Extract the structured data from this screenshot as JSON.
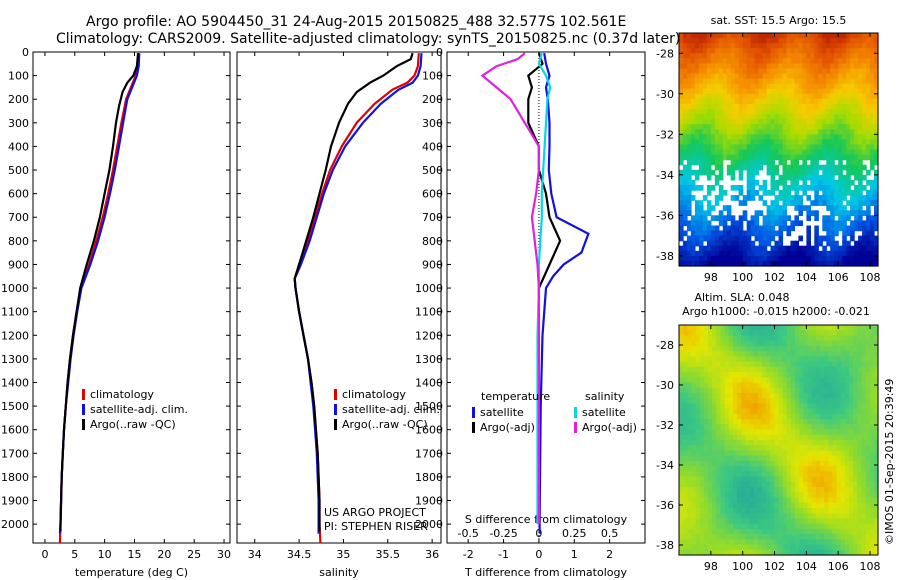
{
  "title": {
    "line1": "Argo profile: AO 5904450_31 24-Aug-2015 20150825_488 32.577S 102.561E",
    "line2": "Climatology: CARS2009. Satellite-adjusted climatology: synTS_20150825.nc (0.37d later)"
  },
  "colors": {
    "climatology": "#e00000",
    "satellite": "#1010e0",
    "argo": "#000000",
    "satellite_sal": "#00d8e8",
    "argo_sal": "#e020e0"
  },
  "credits": {
    "project": "US ARGO PROJECT",
    "pi": "PI: STEPHEN RISER",
    "imos": "©IMOS 01-Sep-2015 20:39:49"
  },
  "chart_data": [
    {
      "type": "line",
      "name": "temperature",
      "xlabel": "temperature (deg C)",
      "ylabel": "",
      "xlim": [
        -2,
        31
      ],
      "ylim": [
        2080,
        0
      ],
      "xticks": [
        0,
        5,
        10,
        15,
        20,
        25,
        30
      ],
      "yticks": [
        0,
        100,
        200,
        300,
        400,
        500,
        600,
        700,
        800,
        900,
        1000,
        1100,
        1200,
        1300,
        1400,
        1500,
        1600,
        1700,
        1800,
        1900,
        2000
      ],
      "legend": [
        "climatology",
        "satellite-adj. clim.",
        "Argo(..raw -QC)"
      ],
      "legend_position": "lower-right",
      "series": [
        {
          "name": "climatology",
          "color": "#e00000",
          "points": [
            [
              15.6,
              5
            ],
            [
              15.5,
              60
            ],
            [
              15.2,
              100
            ],
            [
              14.4,
              150
            ],
            [
              13.6,
              200
            ],
            [
              12.8,
              300
            ],
            [
              12.1,
              400
            ],
            [
              11.4,
              500
            ],
            [
              10.6,
              600
            ],
            [
              9.7,
              700
            ],
            [
              8.6,
              800
            ],
            [
              7.4,
              900
            ],
            [
              6.0,
              1000
            ],
            [
              5.3,
              1100
            ],
            [
              4.7,
              1200
            ],
            [
              4.2,
              1300
            ],
            [
              3.8,
              1400
            ],
            [
              3.5,
              1500
            ],
            [
              3.2,
              1600
            ],
            [
              3.0,
              1700
            ],
            [
              2.8,
              1800
            ],
            [
              2.7,
              1900
            ],
            [
              2.6,
              2000
            ],
            [
              2.5,
              2080
            ]
          ]
        },
        {
          "name": "satellite-adj. clim.",
          "color": "#1010e0",
          "points": [
            [
              15.8,
              5
            ],
            [
              15.7,
              60
            ],
            [
              15.4,
              100
            ],
            [
              14.6,
              150
            ],
            [
              13.8,
              200
            ],
            [
              13.1,
              300
            ],
            [
              12.4,
              400
            ],
            [
              11.7,
              500
            ],
            [
              10.9,
              600
            ],
            [
              10.0,
              700
            ],
            [
              8.9,
              800
            ],
            [
              7.6,
              900
            ],
            [
              6.1,
              1000
            ],
            [
              5.4,
              1100
            ],
            [
              4.8,
              1200
            ],
            [
              4.3,
              1300
            ],
            [
              3.9,
              1400
            ],
            [
              3.5,
              1500
            ],
            [
              3.2,
              1600
            ],
            [
              3.0,
              1700
            ],
            [
              2.8,
              1800
            ],
            [
              2.7,
              1900
            ],
            [
              2.6,
              2000
            ],
            [
              2.5,
              2040
            ]
          ]
        },
        {
          "name": "Argo(..raw -QC)",
          "color": "#000000",
          "points": [
            [
              15.6,
              5
            ],
            [
              15.4,
              60
            ],
            [
              14.8,
              100
            ],
            [
              13.8,
              130
            ],
            [
              13.0,
              170
            ],
            [
              12.4,
              230
            ],
            [
              11.9,
              300
            ],
            [
              11.4,
              400
            ],
            [
              10.8,
              500
            ],
            [
              10.0,
              600
            ],
            [
              9.2,
              700
            ],
            [
              8.2,
              800
            ],
            [
              7.0,
              900
            ],
            [
              5.9,
              1000
            ],
            [
              5.3,
              1100
            ],
            [
              4.7,
              1200
            ],
            [
              4.2,
              1300
            ],
            [
              3.8,
              1400
            ],
            [
              3.5,
              1500
            ],
            [
              3.2,
              1600
            ],
            [
              3.0,
              1700
            ],
            [
              2.8,
              1800
            ],
            [
              2.7,
              1900
            ],
            [
              2.6,
              2000
            ],
            [
              2.6,
              2030
            ]
          ]
        }
      ]
    },
    {
      "type": "line",
      "name": "salinity",
      "xlabel": "salinity",
      "xlim": [
        33.8,
        36.1
      ],
      "ylim": [
        2080,
        0
      ],
      "xticks": [
        34,
        34.5,
        35,
        35.5,
        36
      ],
      "legend": [
        "climatology",
        "satellite-adj. clim.",
        "Argo(..raw -QC)"
      ],
      "legend_position": "lower-right",
      "series": [
        {
          "name": "climatology",
          "color": "#e00000",
          "points": [
            [
              35.85,
              5
            ],
            [
              35.84,
              60
            ],
            [
              35.8,
              100
            ],
            [
              35.72,
              130
            ],
            [
              35.55,
              160
            ],
            [
              35.35,
              220
            ],
            [
              35.15,
              300
            ],
            [
              34.98,
              400
            ],
            [
              34.85,
              500
            ],
            [
              34.76,
              600
            ],
            [
              34.68,
              700
            ],
            [
              34.6,
              800
            ],
            [
              34.5,
              900
            ],
            [
              34.45,
              960
            ],
            [
              34.46,
              1000
            ],
            [
              34.5,
              1100
            ],
            [
              34.55,
              1200
            ],
            [
              34.6,
              1300
            ],
            [
              34.64,
              1400
            ],
            [
              34.67,
              1500
            ],
            [
              34.69,
              1600
            ],
            [
              34.71,
              1700
            ],
            [
              34.72,
              1800
            ],
            [
              34.73,
              1900
            ],
            [
              34.73,
              2000
            ],
            [
              34.74,
              2080
            ]
          ]
        },
        {
          "name": "satellite-adj. clim.",
          "color": "#1010e0",
          "points": [
            [
              35.88,
              5
            ],
            [
              35.87,
              60
            ],
            [
              35.84,
              100
            ],
            [
              35.78,
              130
            ],
            [
              35.62,
              160
            ],
            [
              35.42,
              220
            ],
            [
              35.22,
              300
            ],
            [
              35.02,
              400
            ],
            [
              34.88,
              500
            ],
            [
              34.78,
              600
            ],
            [
              34.7,
              700
            ],
            [
              34.62,
              800
            ],
            [
              34.52,
              900
            ],
            [
              34.45,
              960
            ],
            [
              34.46,
              1000
            ],
            [
              34.5,
              1100
            ],
            [
              34.55,
              1200
            ],
            [
              34.6,
              1300
            ],
            [
              34.63,
              1400
            ],
            [
              34.66,
              1500
            ],
            [
              34.68,
              1600
            ],
            [
              34.7,
              1700
            ],
            [
              34.71,
              1800
            ],
            [
              34.72,
              1900
            ],
            [
              34.72,
              2000
            ],
            [
              34.72,
              2040
            ]
          ]
        },
        {
          "name": "Argo(..raw -QC)",
          "color": "#000000",
          "points": [
            [
              35.78,
              5
            ],
            [
              35.76,
              30
            ],
            [
              35.6,
              60
            ],
            [
              35.45,
              100
            ],
            [
              35.3,
              130
            ],
            [
              35.15,
              170
            ],
            [
              35.05,
              220
            ],
            [
              34.95,
              300
            ],
            [
              34.86,
              400
            ],
            [
              34.8,
              500
            ],
            [
              34.73,
              600
            ],
            [
              34.66,
              700
            ],
            [
              34.58,
              800
            ],
            [
              34.5,
              900
            ],
            [
              34.45,
              960
            ],
            [
              34.46,
              1000
            ],
            [
              34.5,
              1100
            ],
            [
              34.55,
              1200
            ],
            [
              34.6,
              1300
            ],
            [
              34.64,
              1400
            ],
            [
              34.67,
              1500
            ],
            [
              34.69,
              1600
            ],
            [
              34.71,
              1700
            ],
            [
              34.72,
              1800
            ],
            [
              34.73,
              1900
            ],
            [
              34.73,
              2000
            ],
            [
              34.73,
              2030
            ]
          ]
        }
      ]
    },
    {
      "type": "line",
      "name": "difference",
      "xlabel": "T difference from climatology",
      "x2label": "S difference from climatology",
      "xlim": [
        -2.6,
        3.0
      ],
      "ylim": [
        2080,
        0
      ],
      "xticks": [
        -2,
        -1,
        0,
        1,
        2
      ],
      "x2ticks": [
        -0.5,
        -0.25,
        0,
        0.25,
        0.5
      ],
      "x2ticklabels": [
        "-0.5",
        "-0.25",
        "0",
        "0.25",
        "0.5"
      ],
      "legend_groups": {
        "temperature": [
          "satellite",
          "Argo(-adj)"
        ],
        "salinity": [
          "satellite",
          "Argo(-adj)"
        ]
      },
      "legend_position": "lower-center",
      "series": [
        {
          "name": "temperature satellite",
          "color": "#1010e0",
          "points": [
            [
              0.15,
              5
            ],
            [
              0.2,
              50
            ],
            [
              0.3,
              100
            ],
            [
              0.2,
              150
            ],
            [
              0.25,
              200
            ],
            [
              0.3,
              300
            ],
            [
              0.3,
              400
            ],
            [
              0.28,
              500
            ],
            [
              0.35,
              600
            ],
            [
              0.5,
              700
            ],
            [
              1.4,
              770
            ],
            [
              1.2,
              850
            ],
            [
              0.7,
              900
            ],
            [
              0.4,
              950
            ],
            [
              0.2,
              1000
            ],
            [
              0.1,
              1200
            ],
            [
              0.05,
              1500
            ],
            [
              0.03,
              1800
            ],
            [
              0.02,
              2000
            ],
            [
              0.02,
              2040
            ]
          ]
        },
        {
          "name": "temperature Argo(-adj)",
          "color": "#000000",
          "points": [
            [
              0.0,
              5
            ],
            [
              0.1,
              50
            ],
            [
              -0.3,
              100
            ],
            [
              -0.2,
              150
            ],
            [
              -0.3,
              200
            ],
            [
              -0.3,
              300
            ],
            [
              0.0,
              400
            ],
            [
              0.0,
              500
            ],
            [
              0.2,
              600
            ],
            [
              0.3,
              700
            ],
            [
              0.6,
              800
            ],
            [
              0.3,
              900
            ],
            [
              0.0,
              1000
            ],
            [
              0.0,
              1200
            ],
            [
              0.0,
              1500
            ],
            [
              0.0,
              1800
            ],
            [
              0.0,
              2000
            ]
          ]
        },
        {
          "name": "salinity satellite",
          "color": "#00d8e8",
          "points": [
            [
              0.02,
              5
            ],
            [
              0.0,
              50
            ],
            [
              0.05,
              100
            ],
            [
              0.08,
              150
            ],
            [
              0.06,
              200
            ],
            [
              0.05,
              300
            ],
            [
              0.04,
              400
            ],
            [
              0.03,
              500
            ],
            [
              0.02,
              600
            ],
            [
              0.02,
              700
            ],
            [
              0.01,
              800
            ],
            [
              0.0,
              900
            ],
            [
              0.0,
              1000
            ],
            [
              -0.01,
              1200
            ],
            [
              -0.01,
              1500
            ],
            [
              -0.01,
              1800
            ],
            [
              -0.01,
              2000
            ]
          ]
        },
        {
          "name": "salinity Argo(-adj)",
          "color": "#e020e0",
          "points": [
            [
              -0.1,
              5
            ],
            [
              -0.15,
              30
            ],
            [
              -0.3,
              60
            ],
            [
              -0.4,
              100
            ],
            [
              -0.3,
              150
            ],
            [
              -0.2,
              200
            ],
            [
              -0.1,
              300
            ],
            [
              -0.05,
              350
            ],
            [
              0.0,
              400
            ],
            [
              0.0,
              500
            ],
            [
              -0.02,
              600
            ],
            [
              -0.05,
              700
            ],
            [
              -0.03,
              800
            ],
            [
              -0.01,
              900
            ],
            [
              0.0,
              1000
            ],
            [
              0.0,
              1200
            ],
            [
              0.0,
              1500
            ],
            [
              0.0,
              1800
            ],
            [
              0.0,
              2000
            ]
          ]
        }
      ]
    },
    {
      "type": "heatmap",
      "name": "sst_map",
      "title": "sat. SST: 15.5 Argo: 15.5",
      "xlim": [
        96,
        108.5
      ],
      "ylim": [
        -38.5,
        -27
      ],
      "xticks": [
        98,
        100,
        102,
        104,
        106,
        108
      ],
      "yticks": [
        -28,
        -30,
        -32,
        -34,
        -36,
        -38
      ],
      "argo_position": [
        102.561,
        -32.577
      ]
    },
    {
      "type": "heatmap",
      "name": "sla_map",
      "title": "Altim. SLA: 0.048",
      "subtitle": "Argo h1000: -0.015 h2000: -0.021",
      "xlim": [
        96,
        108.5
      ],
      "ylim": [
        -38.5,
        -27
      ],
      "xticks": [
        98,
        100,
        102,
        104,
        106,
        108
      ],
      "yticks": [
        -28,
        -30,
        -32,
        -34,
        -36,
        -38
      ]
    }
  ]
}
